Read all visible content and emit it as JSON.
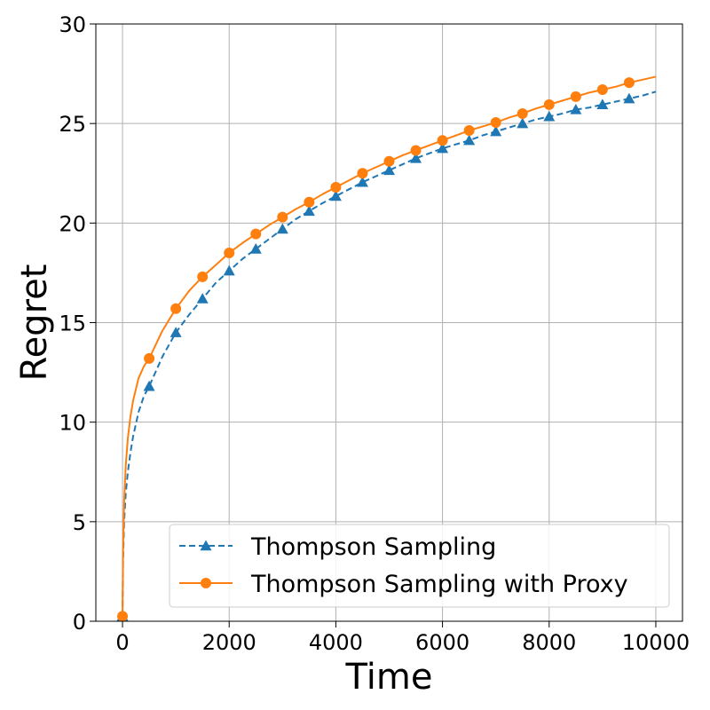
{
  "chart_data": {
    "type": "line",
    "title": "",
    "xlabel": "Time",
    "ylabel": "Regret",
    "xlim": [
      -500,
      10500
    ],
    "ylim": [
      0,
      30
    ],
    "xticks": [
      0,
      2000,
      4000,
      6000,
      8000,
      10000
    ],
    "yticks": [
      0,
      5,
      10,
      15,
      20,
      25,
      30
    ],
    "grid": true,
    "legend_position": "lower-right",
    "series": [
      {
        "name": "Thompson Sampling",
        "color": "#1f77b4",
        "line_style": "dashed",
        "marker": "triangle",
        "x": [
          0,
          10,
          30,
          60,
          100,
          150,
          200,
          300,
          400,
          500,
          750,
          1000,
          1250,
          1500,
          1750,
          2000,
          2250,
          2500,
          2750,
          3000,
          3250,
          3500,
          3750,
          4000,
          4250,
          4500,
          4750,
          5000,
          5250,
          5500,
          5750,
          6000,
          6250,
          6500,
          6750,
          7000,
          7250,
          7500,
          7750,
          8000,
          8250,
          8500,
          8750,
          9000,
          9250,
          9500,
          9750,
          10000
        ],
        "y": [
          0.25,
          3.0,
          5.0,
          6.4,
          7.5,
          8.5,
          9.3,
          10.5,
          11.3,
          11.8,
          13.3,
          14.5,
          15.4,
          16.2,
          17.0,
          17.6,
          18.2,
          18.7,
          19.2,
          19.7,
          20.2,
          20.6,
          21.0,
          21.35,
          21.7,
          22.05,
          22.35,
          22.65,
          22.95,
          23.25,
          23.5,
          23.75,
          23.95,
          24.15,
          24.4,
          24.6,
          24.8,
          25.0,
          25.2,
          25.35,
          25.5,
          25.7,
          25.8,
          25.95,
          26.1,
          26.25,
          26.4,
          26.6
        ],
        "marker_x": [
          0,
          500,
          1000,
          1500,
          2000,
          2500,
          3000,
          3500,
          4000,
          4500,
          5000,
          5500,
          6000,
          6500,
          7000,
          7500,
          8000,
          8500,
          9000,
          9500
        ]
      },
      {
        "name": "Thompson Sampling with Proxy",
        "color": "#ff7f0e",
        "line_style": "solid",
        "marker": "circle",
        "x": [
          0,
          10,
          30,
          60,
          100,
          150,
          200,
          300,
          400,
          500,
          750,
          1000,
          1250,
          1500,
          1750,
          2000,
          2250,
          2500,
          2750,
          3000,
          3250,
          3500,
          3750,
          4000,
          4250,
          4500,
          4750,
          5000,
          5250,
          5500,
          5750,
          6000,
          6250,
          6500,
          6750,
          7000,
          7250,
          7500,
          7750,
          8000,
          8250,
          8500,
          8750,
          9000,
          9250,
          9500,
          9750,
          10000
        ],
        "y": [
          0.25,
          3.6,
          6.0,
          7.8,
          9.2,
          10.3,
          11.1,
          12.2,
          12.8,
          13.2,
          14.6,
          15.7,
          16.6,
          17.3,
          17.9,
          18.5,
          19.0,
          19.45,
          19.9,
          20.3,
          20.7,
          21.05,
          21.45,
          21.8,
          22.15,
          22.5,
          22.8,
          23.1,
          23.4,
          23.65,
          23.9,
          24.15,
          24.4,
          24.65,
          24.85,
          25.05,
          25.3,
          25.5,
          25.75,
          25.95,
          26.15,
          26.35,
          26.55,
          26.7,
          26.85,
          27.05,
          27.2,
          27.35
        ],
        "marker_x": [
          0,
          500,
          1000,
          1500,
          2000,
          2500,
          3000,
          3500,
          4000,
          4500,
          5000,
          5500,
          6000,
          6500,
          7000,
          7500,
          8000,
          8500,
          9000,
          9500
        ]
      }
    ]
  }
}
